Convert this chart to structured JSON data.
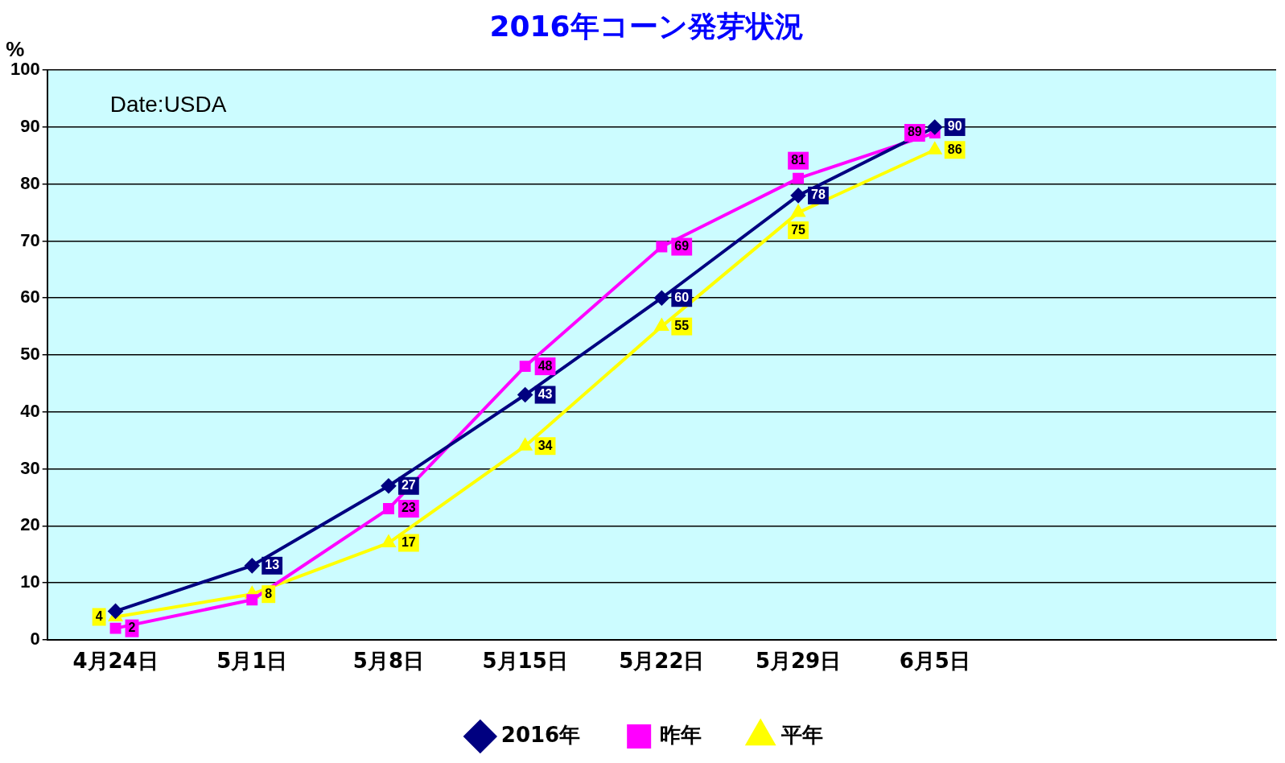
{
  "chart_data": {
    "type": "line",
    "title": "2016年コーン発芽状況",
    "ylabel": "%",
    "annotations": [
      "Date:USDA"
    ],
    "categories": [
      "4月24日",
      "5月1日",
      "5月8日",
      "5月15日",
      "5月22日",
      "5月29日",
      "6月5日",
      null,
      null
    ],
    "series": [
      {
        "name": "2016年",
        "color": "#000080",
        "marker": "diamond",
        "values": [
          5,
          13,
          27,
          43,
          60,
          78,
          90,
          null,
          null
        ],
        "value_labels": [
          null,
          "13",
          "27",
          "43",
          "60",
          "78",
          "90",
          null,
          null
        ]
      },
      {
        "name": "昨年",
        "color": "#ff00ff",
        "marker": "square",
        "values": [
          2,
          7,
          23,
          48,
          69,
          81,
          89,
          null,
          null
        ],
        "value_labels": [
          "2",
          null,
          "23",
          "48",
          "69",
          "81",
          "89",
          null,
          null
        ]
      },
      {
        "name": "平年",
        "color": "#ffff00",
        "marker": "triangle",
        "values": [
          4,
          8,
          17,
          34,
          55,
          75,
          86,
          null,
          null
        ],
        "value_labels": [
          "4",
          "8",
          "17",
          "34",
          "55",
          "75",
          "86",
          null,
          null
        ]
      }
    ],
    "ylim": [
      0,
      100
    ],
    "yticks": [
      0,
      10,
      20,
      30,
      40,
      50,
      60,
      70,
      80,
      90,
      100
    ],
    "grid": "y",
    "legend": "bottom",
    "line_style": "solid"
  }
}
